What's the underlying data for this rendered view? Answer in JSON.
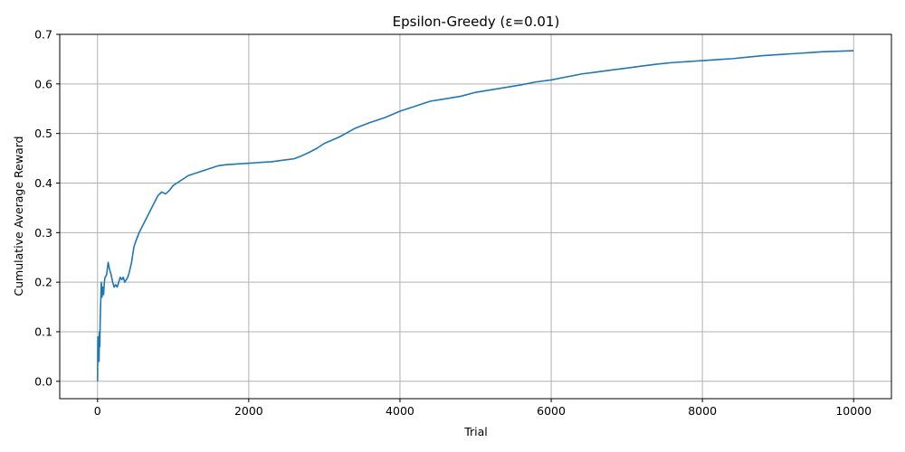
{
  "chart_data": {
    "type": "line",
    "title": "Epsilon-Greedy (ε=0.01)",
    "xlabel": "Trial",
    "ylabel": "Cumulative Average Reward",
    "xlim": [
      -500,
      10500
    ],
    "ylim": [
      -0.035,
      0.7
    ],
    "xticks": [
      0,
      2000,
      4000,
      6000,
      8000,
      10000
    ],
    "xtick_labels": [
      "0",
      "2000",
      "4000",
      "6000",
      "8000",
      "10000"
    ],
    "yticks": [
      0.0,
      0.1,
      0.2,
      0.3,
      0.4,
      0.5,
      0.6,
      0.7
    ],
    "ytick_labels": [
      "0.0",
      "0.1",
      "0.2",
      "0.3",
      "0.4",
      "0.5",
      "0.6",
      "0.7"
    ],
    "grid": true,
    "series": [
      {
        "color": "#1f77b4",
        "x": [
          0,
          5,
          10,
          15,
          20,
          25,
          30,
          35,
          40,
          50,
          60,
          70,
          80,
          90,
          100,
          120,
          140,
          160,
          180,
          200,
          220,
          240,
          260,
          280,
          300,
          320,
          340,
          360,
          380,
          400,
          420,
          450,
          480,
          500,
          550,
          600,
          650,
          700,
          750,
          800,
          850,
          900,
          950,
          1000,
          1050,
          1100,
          1150,
          1200,
          1300,
          1400,
          1500,
          1600,
          1700,
          1800,
          1900,
          2000,
          2100,
          2200,
          2300,
          2400,
          2500,
          2600,
          2700,
          2800,
          2900,
          3000,
          3200,
          3400,
          3600,
          3800,
          4000,
          4200,
          4400,
          4600,
          4800,
          5000,
          5200,
          5400,
          5600,
          5800,
          6000,
          6200,
          6400,
          6600,
          6800,
          7000,
          7200,
          7400,
          7600,
          7800,
          8000,
          8200,
          8400,
          8600,
          8800,
          9000,
          9200,
          9400,
          9600,
          9800,
          10000
        ],
        "y": [
          0.0,
          0.09,
          0.05,
          0.085,
          0.04,
          0.1,
          0.07,
          0.12,
          0.15,
          0.2,
          0.17,
          0.19,
          0.175,
          0.2,
          0.21,
          0.215,
          0.24,
          0.225,
          0.215,
          0.2,
          0.19,
          0.195,
          0.19,
          0.2,
          0.21,
          0.205,
          0.21,
          0.2,
          0.205,
          0.21,
          0.22,
          0.24,
          0.27,
          0.28,
          0.3,
          0.315,
          0.33,
          0.345,
          0.36,
          0.375,
          0.382,
          0.378,
          0.385,
          0.395,
          0.4,
          0.405,
          0.41,
          0.415,
          0.42,
          0.425,
          0.43,
          0.435,
          0.437,
          0.438,
          0.439,
          0.44,
          0.441,
          0.442,
          0.443,
          0.445,
          0.447,
          0.449,
          0.455,
          0.462,
          0.47,
          0.48,
          0.493,
          0.51,
          0.522,
          0.532,
          0.545,
          0.555,
          0.565,
          0.57,
          0.575,
          0.583,
          0.588,
          0.593,
          0.598,
          0.604,
          0.608,
          0.614,
          0.62,
          0.624,
          0.628,
          0.632,
          0.636,
          0.64,
          0.643,
          0.645,
          0.647,
          0.649,
          0.651,
          0.654,
          0.657,
          0.659,
          0.661,
          0.663,
          0.665,
          0.666,
          0.667
        ]
      }
    ]
  }
}
